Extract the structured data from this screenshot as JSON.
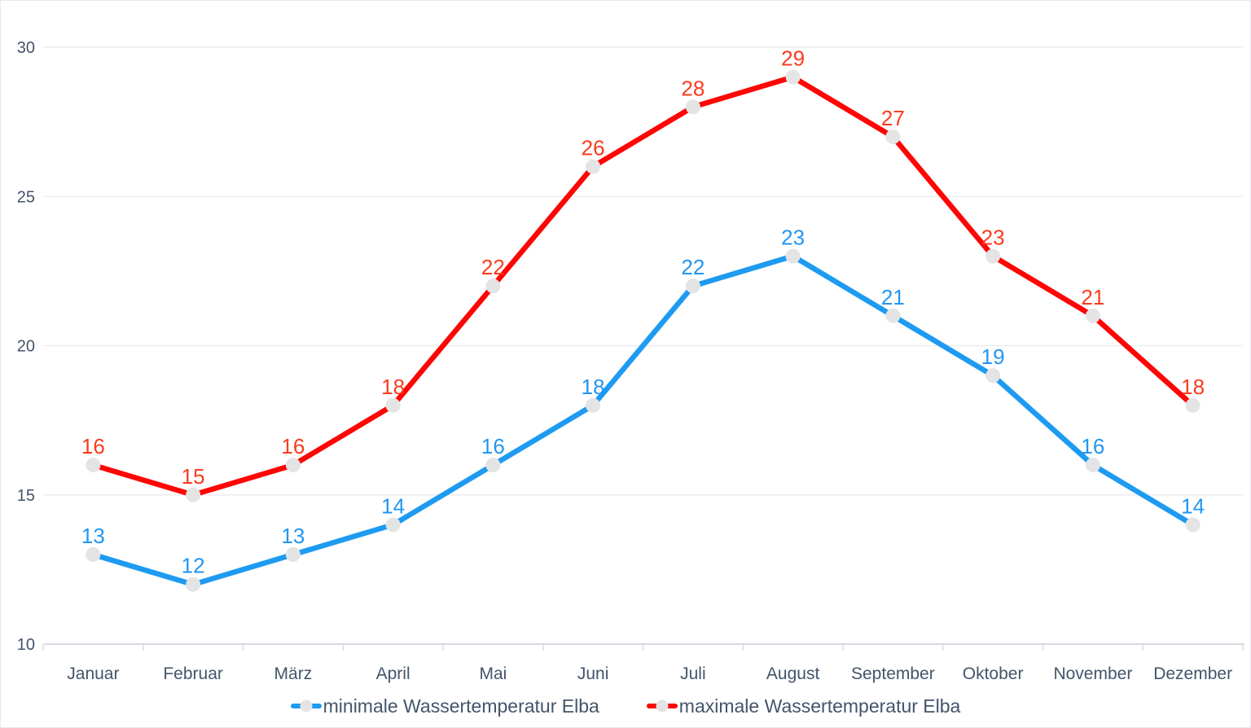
{
  "chart_data": {
    "type": "line",
    "title": "",
    "xlabel": "",
    "ylabel": "",
    "categories": [
      "Januar",
      "Februar",
      "März",
      "April",
      "Mai",
      "Juni",
      "Juli",
      "August",
      "September",
      "Oktober",
      "November",
      "Dezember"
    ],
    "series": [
      {
        "name": "minimale Wassertemperatur Elba",
        "values": [
          13,
          12,
          13,
          14,
          16,
          18,
          22,
          23,
          21,
          19,
          16,
          14
        ],
        "color": "#1E9BF1",
        "label_color": "#2196F3"
      },
      {
        "name": "maximale Wassertemperatur Elba",
        "values": [
          16,
          15,
          16,
          18,
          22,
          26,
          28,
          29,
          27,
          23,
          21,
          18
        ],
        "color": "#FD0606",
        "label_color": "#FA3B1E"
      }
    ],
    "ylim": [
      10,
      30
    ],
    "yticks": [
      10,
      15,
      20,
      25,
      30
    ],
    "grid": true,
    "legend_position": "bottom",
    "marker_color": "#E4E4E4"
  },
  "colors": {
    "text": "#44546A",
    "gridline": "#E9E9F1",
    "axis_line": "#D9D9E3",
    "tick": "#D9D9E3",
    "background": "#FFFFFF",
    "border": "#E8E8F0"
  }
}
